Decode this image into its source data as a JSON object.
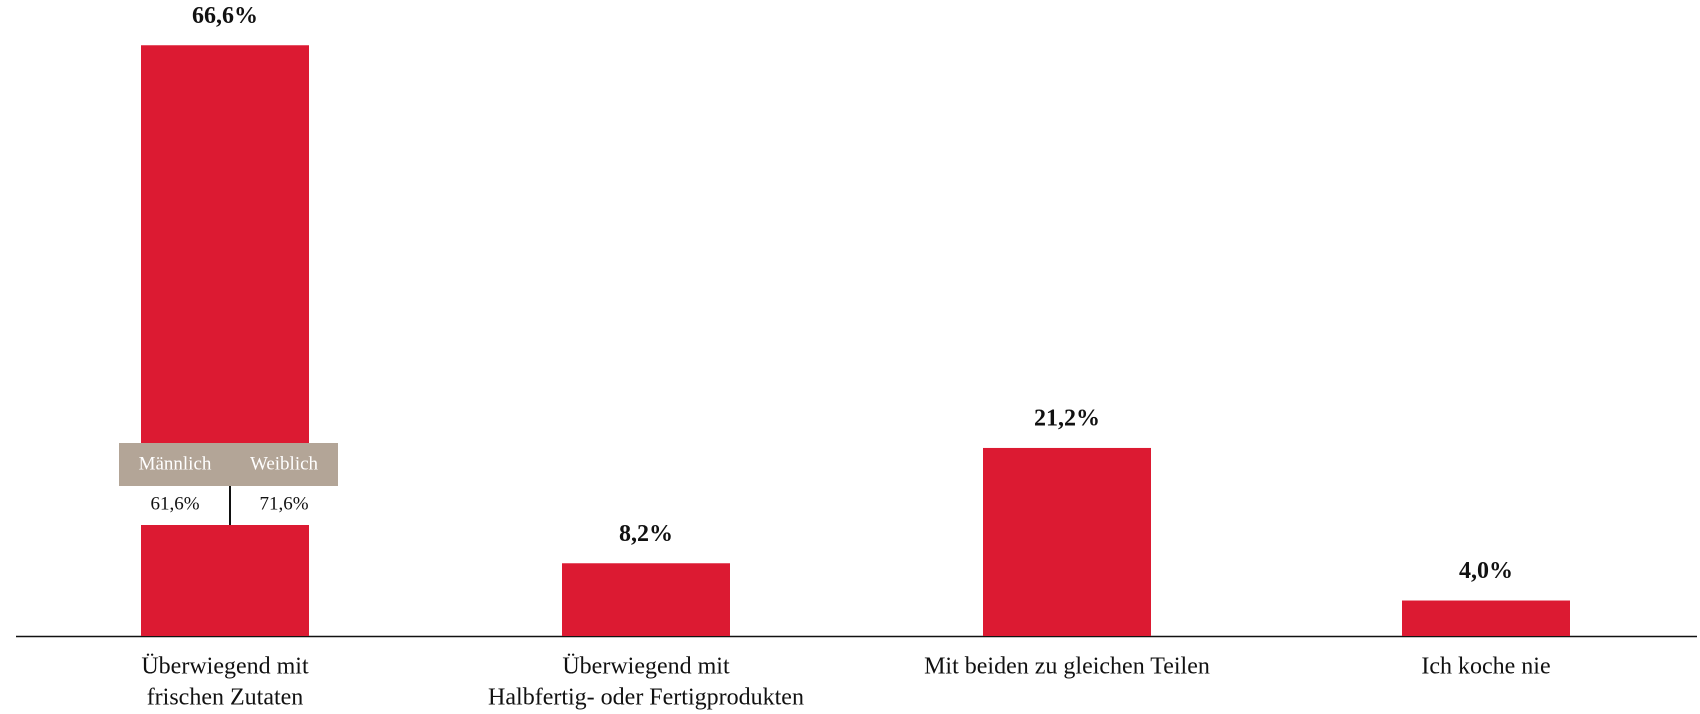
{
  "chart_data": {
    "type": "bar",
    "categories": [
      [
        "Überwiegend mit",
        "frischen Zutaten"
      ],
      [
        "Überwiegend mit",
        "Halbfertig- oder Fertigprodukten"
      ],
      [
        "Mit beiden zu gleichen Teilen"
      ],
      [
        "Ich koche nie"
      ]
    ],
    "values": [
      66.6,
      8.2,
      21.2,
      4.0
    ],
    "value_labels": [
      "66,6%",
      "8,2%",
      "21,2%",
      "4,0%"
    ],
    "color": "#dc1a32",
    "breakdown": {
      "category": 0,
      "labels": [
        "Männlich",
        "Weiblich"
      ],
      "values": [
        61.6,
        71.6
      ],
      "value_labels": [
        "61,6%",
        "71,6%"
      ],
      "color": "#b3a597"
    }
  }
}
